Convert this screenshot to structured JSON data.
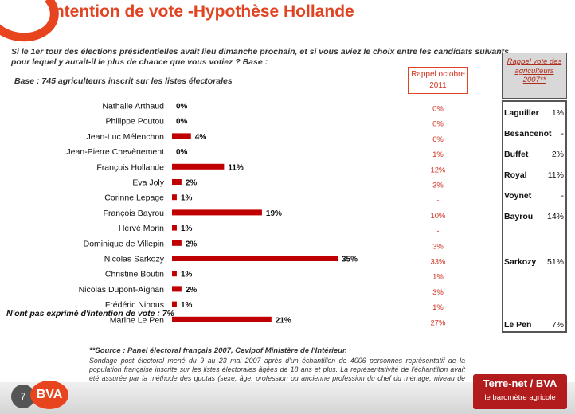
{
  "title": "Intention de vote -Hypothèse Hollande",
  "question": "Si le 1er  tour des élections présidentielles avait lieu dimanche prochain, et si vous aviez le choix entre les candidats suivants, pour lequel y aurait-il le plus de chance que vous votiez ? Base :",
  "base": "Base : 745 agriculteurs inscrit sur les listes électorales",
  "rappel_label": "Rappel octobre 2011",
  "side_header": "Rappel vote des agriculteurs 2007**",
  "side_panel": [
    {
      "name": "Laguiller",
      "value": "1%"
    },
    {
      "name": "Besancenot",
      "value": "-"
    },
    {
      "name": "Buffet",
      "value": "2%"
    },
    {
      "name": "Royal",
      "value": "11%"
    },
    {
      "name": "Voynet",
      "value": "-"
    },
    {
      "name": "Bayrou",
      "value": "14%"
    },
    {
      "name": "Sarkozy",
      "value": "51%"
    },
    {
      "name": "Le Pen",
      "value": "7%"
    }
  ],
  "non_exprime": "N'ont pas exprimé d'intention de vote : 7%",
  "source": "**Source : Panel électoral français 2007, Cevipof Ministère de l'Intérieur.",
  "source_detail": "Sondage post électoral mené du 9 au 23 mai 2007 après d'un échantillon de 4006 personnes représentatif de la population française inscrite sur les listes électorales âgées de 18 ans et plus. La représentativité de l'échantillon avait été assurée par la méthode des quotas (sexe, âge, profession ou ancienne profession du chef du ménage, niveau de diplôme, après stratification par régions administratives et catégorie d'agglomération)",
  "footer": {
    "page_number": "7",
    "bva_logo": "BVA",
    "terre_title": "Terre-net / BVA",
    "terre_sub": "le baromètre agricole"
  },
  "colors": {
    "accent": "#e04422",
    "bar": "#c00000",
    "rappel": "#d0321f"
  },
  "chart_data": {
    "type": "bar",
    "orientation": "horizontal",
    "categories": [
      "Nathalie Arthaud",
      "Philippe Poutou",
      "Jean-Luc Mélenchon",
      "Jean-Pierre Chevènement",
      "François Hollande",
      "Eva Joly",
      "Corinne Lepage",
      "François Bayrou",
      "Hervé Morin",
      "Dominique de Villepin",
      "Nicolas Sarkozy",
      "Christine Boutin",
      "Nicolas Dupont-Aignan",
      "Frédéric Nihous",
      "Marine Le Pen"
    ],
    "values": [
      0,
      0,
      4,
      0,
      11,
      2,
      1,
      19,
      1,
      2,
      35,
      1,
      2,
      1,
      21
    ],
    "value_labels": [
      "0%",
      "0%",
      "4%",
      "0%",
      "11%",
      "2%",
      "1%",
      "19%",
      "1%",
      "2%",
      "35%",
      "1%",
      "2%",
      "1%",
      "21%"
    ],
    "rappel_values": [
      "0%",
      "0%",
      "6%",
      "1%",
      "12%",
      "3%",
      "-",
      "10%",
      "-",
      "3%",
      "33%",
      "1%",
      "3%",
      "1%",
      "27%"
    ],
    "xlim": [
      0,
      35
    ]
  }
}
